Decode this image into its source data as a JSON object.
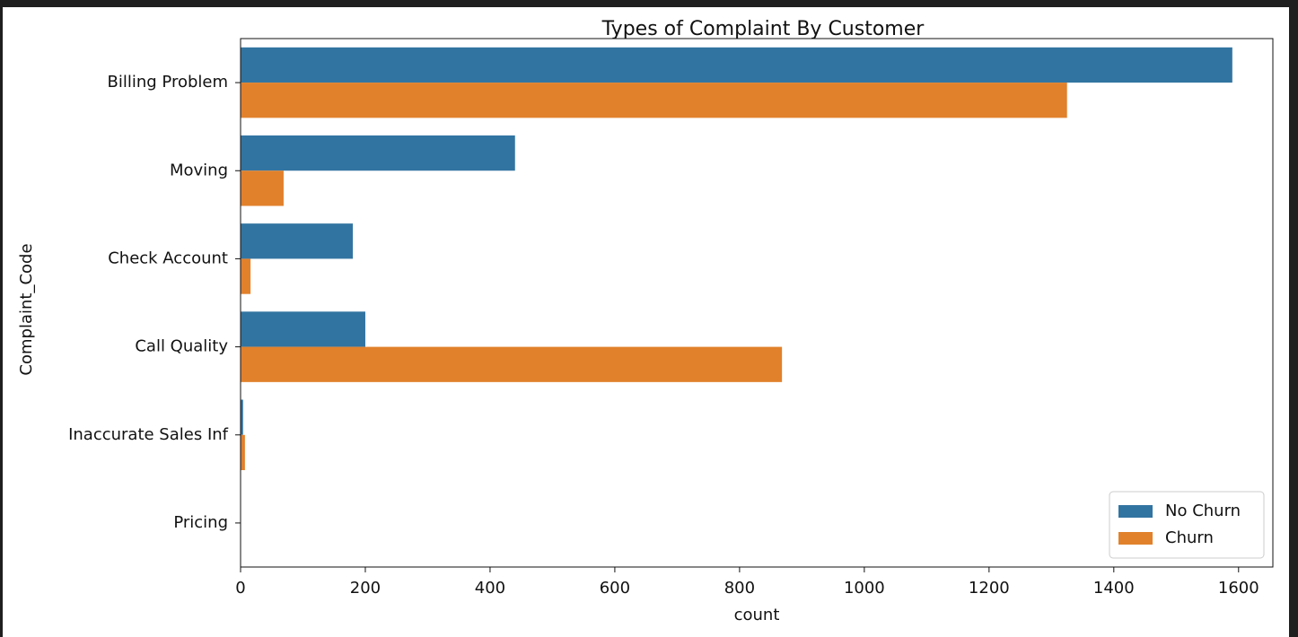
{
  "chart_data": {
    "type": "bar",
    "orientation": "horizontal",
    "title": "Types of Complaint By Customer",
    "x_label": "count",
    "y_label": "Complaint_Code",
    "categories": [
      "Billing Problem",
      "Moving",
      "Check Account",
      "Call Quality",
      "Inaccurate Sales Inf",
      "Pricing"
    ],
    "series": [
      {
        "name": "No Churn",
        "color": "#3274a1",
        "values": [
          1590,
          440,
          180,
          200,
          4,
          0
        ]
      },
      {
        "name": "Churn",
        "color": "#e1812c",
        "values": [
          1325,
          69,
          16,
          868,
          7,
          0
        ]
      }
    ],
    "xlim": [
      0,
      1655
    ],
    "xticks": [
      0,
      200,
      400,
      600,
      800,
      1000,
      1200,
      1400,
      1600
    ],
    "legend": "lower right"
  }
}
